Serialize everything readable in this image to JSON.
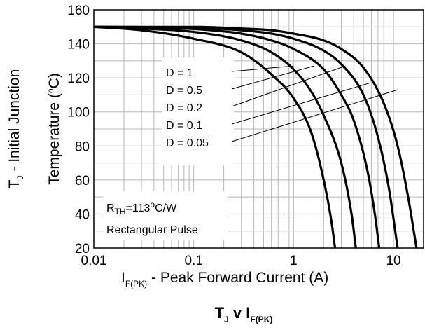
{
  "chart_data": {
    "type": "line",
    "title": {
      "main": "T",
      "main_sub": "J",
      "mid": " v I",
      "mid_sub": "F(PK)"
    },
    "xlabel": {
      "pre": "I",
      "sub": "F(PK)",
      "post": " - Peak Forward Current (A)"
    },
    "ylabel_line1": {
      "pre": "T",
      "sub": "J",
      "post": " - Initial Junction"
    },
    "ylabel_line2": {
      "pre": "Temperature (",
      "sup": "o",
      "post": "C)"
    },
    "x_scale": "log",
    "xlim": [
      0.01,
      20
    ],
    "ylim": [
      20,
      160
    ],
    "x_ticks": [
      {
        "value": 0.01,
        "label": "0.01"
      },
      {
        "value": 0.1,
        "label": "0.1"
      },
      {
        "value": 1,
        "label": "1"
      },
      {
        "value": 10,
        "label": "10"
      }
    ],
    "y_ticks": [
      {
        "value": 20,
        "label": "20"
      },
      {
        "value": 40,
        "label": "40"
      },
      {
        "value": 60,
        "label": "60"
      },
      {
        "value": 80,
        "label": "80"
      },
      {
        "value": 100,
        "label": "100"
      },
      {
        "value": 120,
        "label": "120"
      },
      {
        "value": 140,
        "label": "140"
      },
      {
        "value": 160,
        "label": "160"
      }
    ],
    "grid": true,
    "series": [
      {
        "name": "D = 1",
        "points": [
          [
            0.01,
            150
          ],
          [
            0.03,
            148
          ],
          [
            0.1,
            143
          ],
          [
            0.3,
            135
          ],
          [
            0.6,
            122
          ],
          [
            1,
            108
          ],
          [
            1.5,
            88
          ],
          [
            2,
            60
          ],
          [
            2.4,
            35
          ],
          [
            2.6,
            20
          ]
        ]
      },
      {
        "name": "D = 0.5",
        "points": [
          [
            0.01,
            150
          ],
          [
            0.03,
            149
          ],
          [
            0.1,
            147
          ],
          [
            0.3,
            142
          ],
          [
            0.6,
            135
          ],
          [
            1,
            125
          ],
          [
            1.5,
            112
          ],
          [
            2,
            98
          ],
          [
            3,
            70
          ],
          [
            3.8,
            40
          ],
          [
            4.2,
            20
          ]
        ]
      },
      {
        "name": "D = 0.2",
        "points": [
          [
            0.01,
            150
          ],
          [
            0.05,
            149.5
          ],
          [
            0.15,
            148
          ],
          [
            0.3,
            146
          ],
          [
            0.6,
            142
          ],
          [
            1,
            137
          ],
          [
            2,
            125
          ],
          [
            3,
            110
          ],
          [
            4,
            95
          ],
          [
            5.5,
            65
          ],
          [
            6.5,
            40
          ],
          [
            7.2,
            20
          ]
        ]
      },
      {
        "name": "D = 0.1",
        "points": [
          [
            0.01,
            150
          ],
          [
            0.1,
            149.5
          ],
          [
            0.3,
            148
          ],
          [
            0.6,
            146
          ],
          [
            1,
            143
          ],
          [
            2,
            136
          ],
          [
            3,
            128
          ],
          [
            5,
            110
          ],
          [
            7,
            85
          ],
          [
            9,
            55
          ],
          [
            11,
            20
          ]
        ]
      },
      {
        "name": "D = 0.05",
        "points": [
          [
            0.01,
            150
          ],
          [
            0.1,
            150
          ],
          [
            0.3,
            149
          ],
          [
            0.6,
            148
          ],
          [
            1,
            146
          ],
          [
            2,
            142
          ],
          [
            3,
            137
          ],
          [
            5,
            126
          ],
          [
            8,
            105
          ],
          [
            11,
            80
          ],
          [
            14,
            50
          ],
          [
            17,
            20
          ]
        ]
      }
    ],
    "annotations": [
      {
        "text": "D = 1",
        "target": [
          1,
          127
        ]
      },
      {
        "text": "D = 0.5",
        "target": [
          1.6,
          127
        ]
      },
      {
        "text": "D = 0.2",
        "target": [
          3.3,
          127
        ]
      },
      {
        "text": "D = 0.1",
        "target": [
          5.8,
          117
        ]
      },
      {
        "text": "D = 0.05",
        "target": [
          11,
          113
        ]
      }
    ],
    "note": {
      "r_pre": "R",
      "r_sub": "TH",
      "r_val": "=113",
      "r_sup": "o",
      "r_unit": "C/W",
      "pulse": "Rectangular Pulse"
    }
  }
}
